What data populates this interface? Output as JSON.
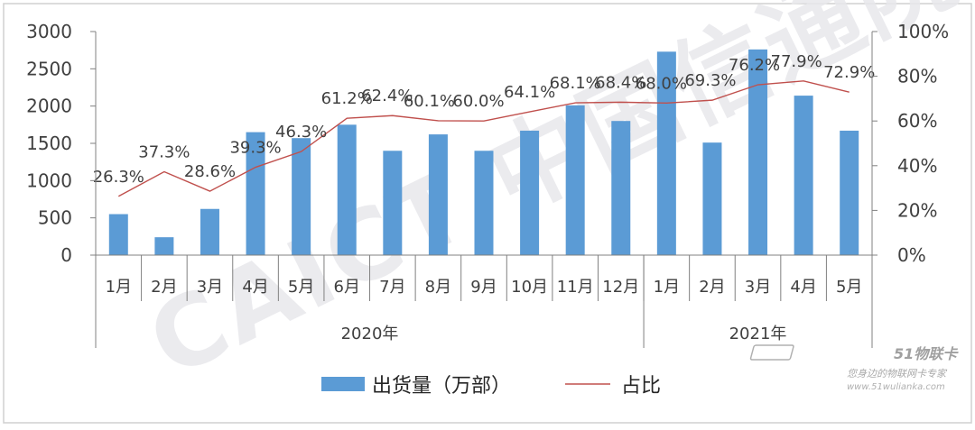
{
  "chart_data": {
    "type": "bar",
    "categories": [
      "1月",
      "2月",
      "3月",
      "4月",
      "5月",
      "6月",
      "7月",
      "8月",
      "9月",
      "10月",
      "11月",
      "12月",
      "1月",
      "2月",
      "3月",
      "4月",
      "5月"
    ],
    "groups": [
      {
        "label": "2020年",
        "count": 12
      },
      {
        "label": "2021年",
        "count": 5
      }
    ],
    "series": [
      {
        "name": "出货量（万部）",
        "type": "bar",
        "axis": "left",
        "values": [
          550,
          240,
          620,
          1650,
          1570,
          1750,
          1400,
          1620,
          1400,
          1670,
          2010,
          1800,
          2730,
          1510,
          2760,
          2140,
          1670
        ]
      },
      {
        "name": "占比",
        "type": "line",
        "axis": "right",
        "values": [
          26.3,
          37.3,
          28.6,
          39.3,
          46.3,
          61.2,
          62.4,
          60.1,
          60.0,
          64.1,
          68.1,
          68.4,
          68.0,
          69.3,
          76.2,
          77.9,
          72.9
        ],
        "labels": [
          "26.3%",
          "37.3%",
          "28.6%",
          "39.3%",
          "46.3%",
          "61.2%",
          "62.4%",
          "60.1%",
          "60.0%",
          "64.1%",
          "68.1%",
          "68.4%",
          "68.0%",
          "69.3%",
          "76.2%",
          "77.9%",
          "72.9%"
        ]
      }
    ],
    "y_left": {
      "ticks": [
        "0",
        "500",
        "1000",
        "1500",
        "2000",
        "2500",
        "3000"
      ],
      "range": [
        0,
        3000
      ]
    },
    "y_right": {
      "ticks": [
        "0%",
        "20%",
        "40%",
        "60%",
        "80%",
        "100%"
      ],
      "range": [
        0,
        100
      ]
    },
    "legend": {
      "position": "bottom",
      "items": [
        "出货量（万部）",
        "占比"
      ]
    },
    "colors": {
      "bar": "#5b9bd5",
      "line": "#c0504d",
      "grid": "#d9d9d9",
      "axis": "#808080",
      "watermark": "#e8e8ec"
    },
    "watermark": "CAICT 中国信通院",
    "logo": {
      "brand": "51物联卡",
      "tagline": "您身边的物联网卡专家",
      "url": "www.51wulianka.com"
    }
  }
}
